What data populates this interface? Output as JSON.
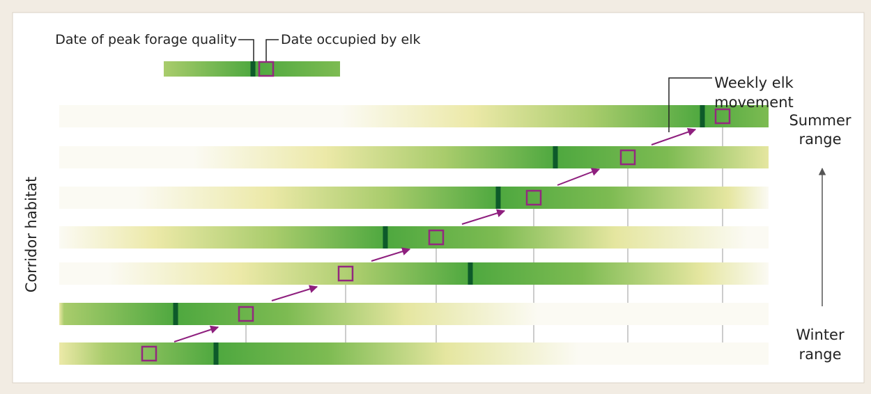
{
  "legend": {
    "peak": "Date of peak forage quality",
    "occupied": "Date occupied by elk"
  },
  "labels": {
    "movement": [
      "Weekly elk",
      "movement"
    ],
    "summer": [
      "Summer",
      "range"
    ],
    "winter": [
      "Winter",
      "range"
    ],
    "axis": "Corridor habitat"
  }
}
